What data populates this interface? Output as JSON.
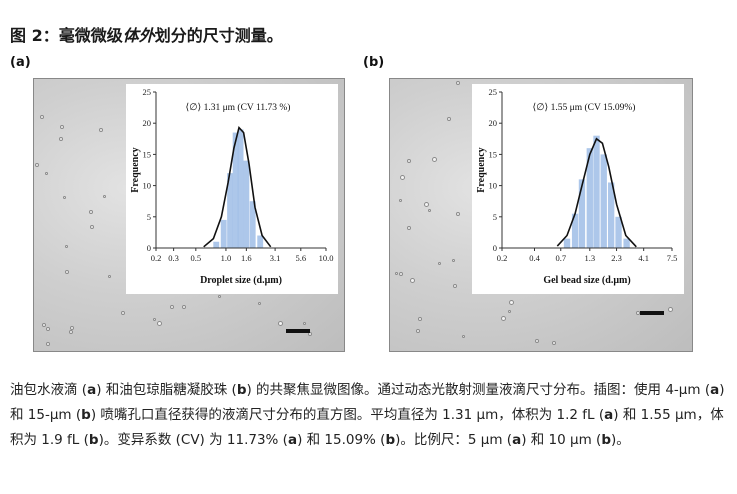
{
  "figure_title": {
    "pre": "图 2：毫微微级",
    "emph": "体外",
    "post": "划分的尺寸测量。"
  },
  "panels": [
    {
      "label": "(a)",
      "inset_text": "⟨∅⟩ 1.31 μm (CV 11.73 %)",
      "ylabel": "Frequency",
      "xlabel": "Droplet size (d.μm)"
    },
    {
      "label": "(b)",
      "inset_text": "⟨∅⟩ 1.55 μm (CV 15.09%)",
      "ylabel": "Frequency",
      "xlabel": "Gel bead size (d.μm)"
    }
  ],
  "chart_data": [
    {
      "type": "bar",
      "xlabel": "Droplet size (d.μm)",
      "ylabel": "Frequency",
      "ylim": [
        0,
        25
      ],
      "yticks": [
        0,
        5,
        10,
        15,
        20,
        25
      ],
      "xticks": [
        "0.2",
        "0.3",
        "0.5",
        "1.0",
        "1.6",
        "3.1",
        "5.6",
        "10.0"
      ],
      "bars": [
        {
          "x": 0.8,
          "y": 1.0
        },
        {
          "x": 0.95,
          "y": 4.5
        },
        {
          "x": 1.1,
          "y": 12.0
        },
        {
          "x": 1.25,
          "y": 18.5
        },
        {
          "x": 1.4,
          "y": 19.0
        },
        {
          "x": 1.6,
          "y": 14.0
        },
        {
          "x": 1.85,
          "y": 7.5
        },
        {
          "x": 2.2,
          "y": 2.0
        }
      ],
      "fit_curve": [
        [
          0.6,
          0.2
        ],
        [
          0.75,
          1.5
        ],
        [
          0.9,
          5.0
        ],
        [
          1.05,
          10.5
        ],
        [
          1.2,
          16.0
        ],
        [
          1.35,
          19.3
        ],
        [
          1.5,
          18.5
        ],
        [
          1.7,
          13.5
        ],
        [
          1.95,
          6.5
        ],
        [
          2.3,
          2.0
        ],
        [
          2.8,
          0.2
        ]
      ]
    },
    {
      "type": "bar",
      "xlabel": "Gel bead size (d.μm)",
      "ylabel": "Frequency",
      "ylim": [
        0,
        25
      ],
      "yticks": [
        0,
        5,
        10,
        15,
        20,
        25
      ],
      "xticks": [
        "0.2",
        "0.4",
        "0.7",
        "1.3",
        "2.3",
        "4.1",
        "7.5"
      ],
      "bars": [
        {
          "x": 0.8,
          "y": 1.5
        },
        {
          "x": 0.95,
          "y": 5.5
        },
        {
          "x": 1.1,
          "y": 11.0
        },
        {
          "x": 1.3,
          "y": 16.0
        },
        {
          "x": 1.5,
          "y": 18.0
        },
        {
          "x": 1.75,
          "y": 15.0
        },
        {
          "x": 2.05,
          "y": 10.5
        },
        {
          "x": 2.4,
          "y": 5.0
        },
        {
          "x": 2.85,
          "y": 1.5
        }
      ],
      "fit_curve": [
        [
          0.65,
          0.3
        ],
        [
          0.8,
          2.0
        ],
        [
          0.95,
          5.5
        ],
        [
          1.1,
          10.0
        ],
        [
          1.3,
          15.0
        ],
        [
          1.5,
          17.5
        ],
        [
          1.7,
          16.8
        ],
        [
          1.95,
          13.0
        ],
        [
          2.3,
          7.0
        ],
        [
          2.8,
          2.0
        ],
        [
          3.5,
          0.2
        ]
      ]
    }
  ],
  "caption": {
    "t1": "油包水液滴 (",
    "a1": "a",
    "t2": ") 和油包琼脂糖凝胶珠 (",
    "b1": "b",
    "t3": ") 的共聚焦显微图像。通过动态光散射测量液滴尺寸分布。插图：使用 4-μm (",
    "a2": "a",
    "t4": ") 和 15-μm (",
    "b2": "b",
    "t5": ") 喷嘴孔口直径获得的液滴尺寸分布的直方图。平均直径为 1.31 μm，体积为 1.2 fL (",
    "a3": "a",
    "t6": ") 和 1.55 μm，体积为 1.9 fL (",
    "b3": "b",
    "t7": ")。变异系数 (CV) 为 11.73% (",
    "a4": "a",
    "t8": ") 和 15.09% (",
    "b4": "b",
    "t9": ")。比例尺：5 μm (",
    "a5": "a",
    "t10": ") 和 10 μm (",
    "b5": "b",
    "t11": ")。"
  }
}
